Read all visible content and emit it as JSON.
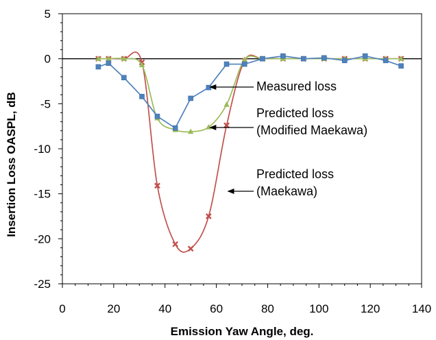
{
  "chart_data": {
    "type": "line",
    "title": "",
    "xlabel": "Emission Yaw Angle, deg.",
    "ylabel": "Insertion Loss OASPL, dB",
    "xlim": [
      0,
      140
    ],
    "ylim": [
      -25,
      5
    ],
    "xticks": [
      0,
      20,
      40,
      60,
      80,
      100,
      120,
      140
    ],
    "yticks": [
      -25,
      -20,
      -15,
      -10,
      -5,
      0,
      5
    ],
    "grid": false,
    "legend": "none",
    "series": [
      {
        "name": "Measured loss",
        "color": "#4f81bd",
        "marker": "square",
        "smooth": false,
        "x": [
          14,
          18,
          24,
          31,
          37,
          44,
          50,
          57,
          64,
          71,
          78,
          86,
          94,
          102,
          110,
          118,
          126,
          132
        ],
        "y": [
          -0.9,
          -0.5,
          -2.1,
          -4.2,
          -6.4,
          -7.7,
          -4.4,
          -3.2,
          -0.6,
          -0.6,
          0.0,
          0.3,
          0.0,
          0.1,
          -0.2,
          0.3,
          -0.2,
          -0.8
        ]
      },
      {
        "name": "Predicted loss (Modified Maekawa)",
        "color": "#9bbb59",
        "marker": "triangle",
        "smooth": true,
        "x": [
          14,
          18,
          24,
          31,
          37,
          44,
          50,
          57,
          64,
          71,
          78,
          86,
          94,
          102,
          110,
          118,
          126,
          132
        ],
        "y": [
          0.0,
          0.0,
          0.0,
          -0.7,
          -6.6,
          -7.9,
          -8.1,
          -7.6,
          -5.1,
          -0.1,
          0.0,
          0.0,
          0.0,
          0.0,
          0.0,
          0.0,
          0.0,
          0.0
        ]
      },
      {
        "name": "Predicted loss (Maekawa)",
        "color": "#c0504d",
        "marker": "x",
        "smooth": true,
        "x": [
          14,
          18,
          24,
          31,
          37,
          44,
          50,
          57,
          64,
          71,
          78,
          86,
          94,
          102,
          110,
          118,
          126,
          132
        ],
        "y": [
          0.0,
          0.0,
          0.0,
          -0.4,
          -14.1,
          -20.6,
          -21.1,
          -17.5,
          -7.4,
          -0.2,
          0.0,
          0.0,
          0.0,
          0.0,
          0.0,
          0.0,
          0.0,
          0.0
        ]
      }
    ],
    "annotations": [
      {
        "lines": [
          "Measured loss"
        ],
        "arrow_to": [
          57,
          -3.2
        ]
      },
      {
        "lines": [
          "Predicted loss",
          "(Modified Maekawa)"
        ],
        "arrow_to": [
          57,
          -7.6
        ]
      },
      {
        "lines": [
          "Predicted loss",
          "(Maekawa)"
        ],
        "arrow_to": [
          64,
          -14.4
        ]
      }
    ]
  }
}
